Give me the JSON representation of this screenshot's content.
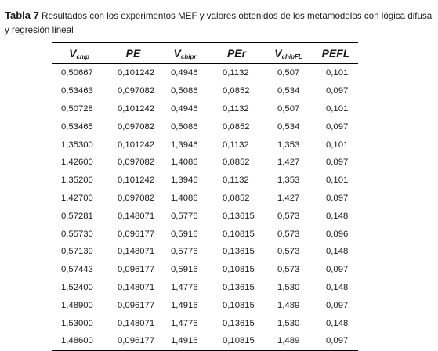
{
  "caption": {
    "label": "Tabla 7",
    "text": " Resultados con los experimentos MEF y valores obtenidos de los metamodelos con lógica difusa y regresión lineal"
  },
  "table": {
    "headers": [
      {
        "main": "V",
        "sub": "chip"
      },
      {
        "main": "PE",
        "sub": ""
      },
      {
        "main": "V",
        "sub": "chipr"
      },
      {
        "main": "PEr",
        "sub": ""
      },
      {
        "main": "V",
        "sub": "chipFL"
      },
      {
        "main": "PEFL",
        "sub": ""
      }
    ],
    "rows": [
      [
        "0,50667",
        "0,101242",
        "0,4946",
        "0,1132",
        "0,507",
        "0,101"
      ],
      [
        "0,53463",
        "0,097082",
        "0,5086",
        "0,0852",
        "0,534",
        "0,097"
      ],
      [
        "0,50728",
        "0,101242",
        "0,4946",
        "0,1132",
        "0,507",
        "0,101"
      ],
      [
        "0,53465",
        "0,097082",
        "0,5086",
        "0,0852",
        "0,534",
        "0,097"
      ],
      [
        "1,35300",
        "0,101242",
        "1,3946",
        "0,1132",
        "1,353",
        "0,101"
      ],
      [
        "1,42600",
        "0,097082",
        "1,4086",
        "0,0852",
        "1,427",
        "0,097"
      ],
      [
        "1,35200",
        "0,101242",
        "1,3946",
        "0,1132",
        "1,353",
        "0,101"
      ],
      [
        "1,42700",
        "0,097082",
        "1,4086",
        "0,0852",
        "1,427",
        "0,097"
      ],
      [
        "0,57281",
        "0,148071",
        "0,5776",
        "0,13615",
        "0,573",
        "0,148"
      ],
      [
        "0,55730",
        "0,096177",
        "0,5916",
        "0,10815",
        "0,573",
        "0,096"
      ],
      [
        "0,57139",
        "0,148071",
        "0,5776",
        "0,13615",
        "0,573",
        "0,148"
      ],
      [
        "0,57443",
        "0,096177",
        "0,5916",
        "0,10815",
        "0,573",
        "0,097"
      ],
      [
        "1,52400",
        "0,148071",
        "1,4776",
        "0,13615",
        "1,530",
        "0,148"
      ],
      [
        "1,48900",
        "0,096177",
        "1,4916",
        "0,10815",
        "1,489",
        "0,097"
      ],
      [
        "1,53000",
        "0,148071",
        "1,4776",
        "0,13615",
        "1,530",
        "0,148"
      ],
      [
        "1,48600",
        "0,096177",
        "1,4916",
        "0,10815",
        "1,489",
        "0,097"
      ]
    ]
  }
}
